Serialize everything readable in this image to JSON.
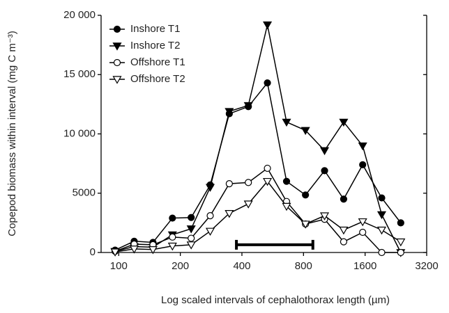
{
  "chart_data": {
    "type": "line",
    "xlabel": "Log scaled intervals of cephalothorax length (µm)",
    "ylabel": "Copepod biomass within interval (mg C m⁻³)",
    "x": [
      96,
      119,
      147,
      183,
      226,
      280,
      347,
      430,
      533,
      661,
      818,
      1014,
      1257,
      1557,
      1929,
      2390
    ],
    "series": [
      {
        "name": "Inshore T1",
        "color": "#000000",
        "marker": "circle",
        "filled": true,
        "values": [
          200,
          950,
          850,
          2900,
          2950,
          5700,
          11700,
          12300,
          14300,
          6000,
          4850,
          6900,
          4500,
          7400,
          4600,
          2500
        ]
      },
      {
        "name": "Inshore T2",
        "color": "#000000",
        "marker": "triangle-down",
        "filled": true,
        "values": [
          100,
          500,
          450,
          1500,
          2000,
          5500,
          11900,
          12400,
          19200,
          11000,
          10300,
          8600,
          11000,
          9000,
          3200,
          0
        ]
      },
      {
        "name": "Offshore T1",
        "color": "#000000",
        "marker": "circle",
        "filled": false,
        "values": [
          100,
          700,
          650,
          1300,
          1200,
          3100,
          5800,
          5900,
          7100,
          4300,
          2400,
          2800,
          900,
          1700,
          0,
          0
        ]
      },
      {
        "name": "Offshore T2",
        "color": "#000000",
        "marker": "triangle-down",
        "filled": false,
        "values": [
          50,
          300,
          250,
          550,
          650,
          1800,
          3300,
          4100,
          6000,
          3900,
          2400,
          3100,
          1900,
          2600,
          1900,
          900
        ]
      }
    ],
    "xscale": "log",
    "xlim": [
      82,
      3200
    ],
    "xticks": [
      100,
      200,
      400,
      800,
      1600,
      3200
    ],
    "ylim": [
      0,
      20000
    ],
    "yticks": [
      0,
      5000,
      {
        "value": 10000,
        "label": "10 000"
      },
      {
        "value": 15000,
        "label": "15 000"
      },
      {
        "value": 20000,
        "label": "20 000"
      }
    ],
    "grid": false,
    "legend": "upper left",
    "range_bar": {
      "x": [
        376,
        889
      ],
      "y": 650
    }
  }
}
